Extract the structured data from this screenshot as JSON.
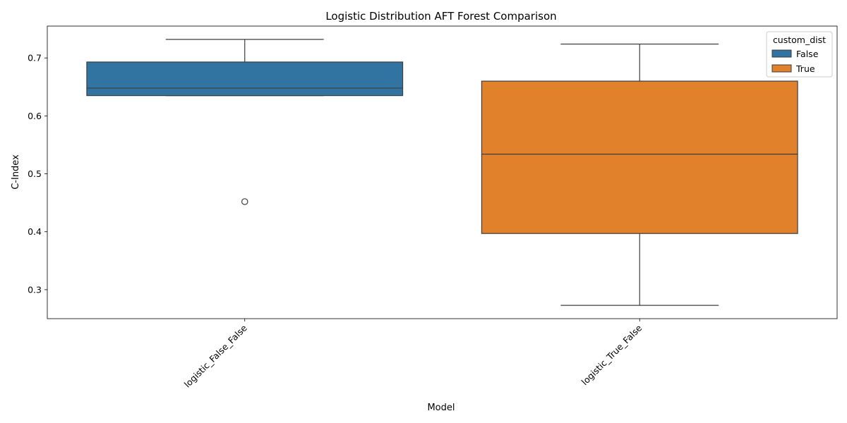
{
  "chart_data": {
    "type": "box",
    "title": "Logistic Distribution AFT Forest Comparison",
    "xlabel": "Model",
    "ylabel": "C-Index",
    "ylim": [
      0.25,
      0.755
    ],
    "yticks": [
      0.3,
      0.4,
      0.5,
      0.6,
      0.7
    ],
    "ytick_labels": [
      "0.3",
      "0.4",
      "0.5",
      "0.6",
      "0.7"
    ],
    "categories": [
      "logistic_False_False",
      "logistic_True_False"
    ],
    "legend": {
      "title": "custom_dist",
      "placement": "top-right",
      "entries": [
        {
          "label": "False",
          "color": "#3274a1"
        },
        {
          "label": "True",
          "color": "#e1812c"
        }
      ]
    },
    "series": [
      {
        "name": "False",
        "color": "#3274a1",
        "category": "logistic_False_False",
        "whisker_low": 0.635,
        "q1": 0.635,
        "median": 0.648,
        "q3": 0.693,
        "whisker_high": 0.732,
        "outliers": [
          0.452
        ]
      },
      {
        "name": "True",
        "color": "#e1812c",
        "category": "logistic_True_False",
        "whisker_low": 0.273,
        "q1": 0.397,
        "median": 0.534,
        "q3": 0.66,
        "whisker_high": 0.724,
        "outliers": []
      }
    ]
  }
}
